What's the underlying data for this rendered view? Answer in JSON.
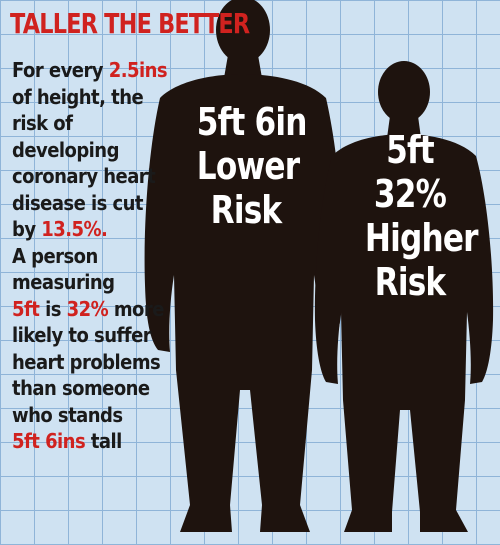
{
  "title": "TALLER THE BETTER",
  "colors": {
    "accent": "#d0221f",
    "grid_background": "#cfe2f2",
    "grid_lines": "#8fb4d8",
    "silhouette": "#1e130e",
    "text": "#1a1a1a",
    "label": "#ffffff"
  },
  "description_lines": [
    [
      {
        "text": "For every ",
        "hl": false
      },
      {
        "text": "2.5ins",
        "hl": true
      }
    ],
    [
      {
        "text": "of height, the",
        "hl": false
      }
    ],
    [
      {
        "text": "risk of",
        "hl": false
      }
    ],
    [
      {
        "text": "developing",
        "hl": false
      }
    ],
    [
      {
        "text": "coronary heart",
        "hl": false
      }
    ],
    [
      {
        "text": "disease is cut",
        "hl": false
      }
    ],
    [
      {
        "text": "by ",
        "hl": false
      },
      {
        "text": "13.5%.",
        "hl": true
      }
    ],
    [
      {
        "text": "A person",
        "hl": false
      }
    ],
    [
      {
        "text": "measuring",
        "hl": false
      }
    ],
    [
      {
        "text": "5ft",
        "hl": true
      },
      {
        "text": " is ",
        "hl": false
      },
      {
        "text": "32%",
        "hl": true
      },
      {
        "text": " more",
        "hl": false
      }
    ],
    [
      {
        "text": "likely to suffer",
        "hl": false
      }
    ],
    [
      {
        "text": "heart problems",
        "hl": false
      }
    ],
    [
      {
        "text": "than someone",
        "hl": false
      }
    ],
    [
      {
        "text": "who stands",
        "hl": false
      }
    ],
    [
      {
        "text": "5ft 6ins",
        "hl": true
      },
      {
        "text": " tall",
        "hl": false
      }
    ]
  ],
  "figures": {
    "tall": {
      "lines": [
        "5ft 6in",
        "Lower",
        "Risk"
      ]
    },
    "short": {
      "lines": [
        "5ft",
        "32%",
        "Higher",
        "Risk"
      ]
    }
  }
}
